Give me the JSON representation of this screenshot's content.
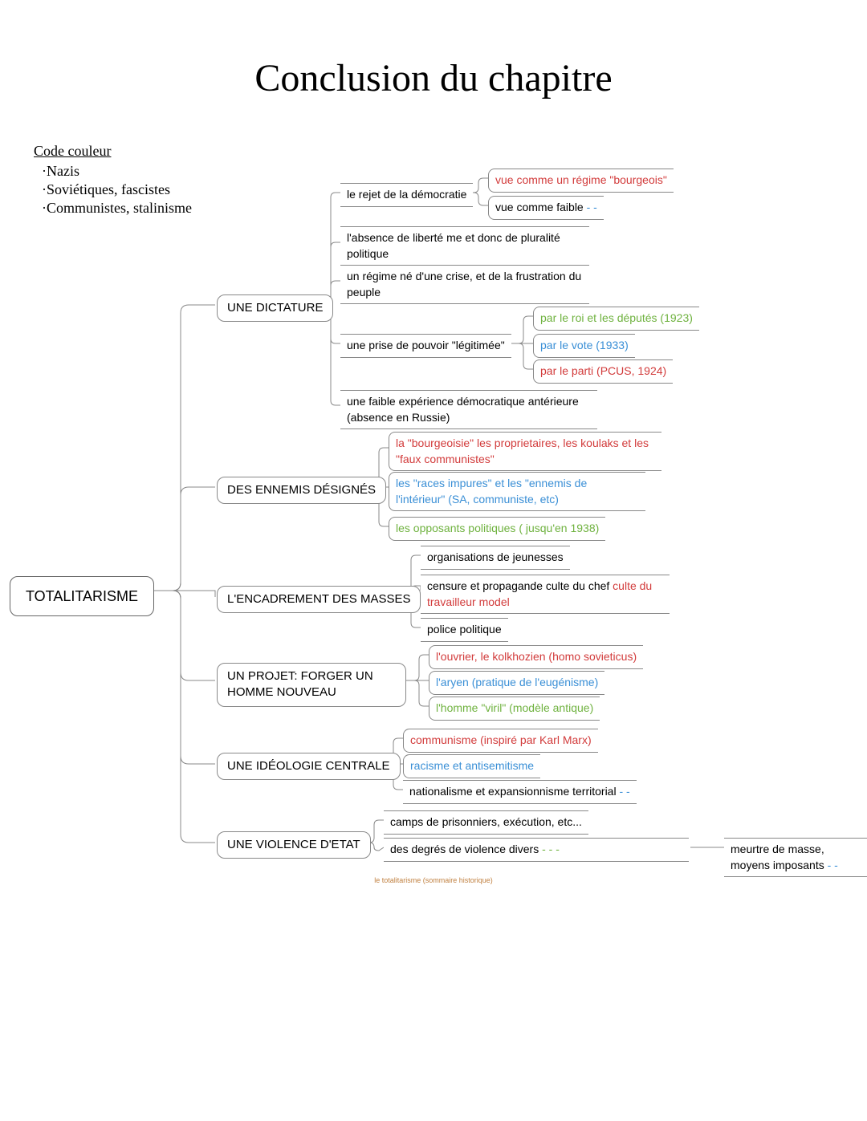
{
  "title": "Conclusion du chapitre",
  "colors": {
    "black": "#000000",
    "nazi": "#3a8fd6",
    "soviet": "#d23b3b",
    "fascist": "#6fb23f",
    "border": "#888888",
    "footer": "#c08040",
    "background": "#ffffff"
  },
  "legend": {
    "title": "Code couleur",
    "items": [
      {
        "label": "·Nazis",
        "color": "#000000"
      },
      {
        "label": "·Soviétiques, fascistes",
        "color": "#000000"
      },
      {
        "label": "·Communistes, stalinisme",
        "color": "#000000"
      }
    ]
  },
  "root": {
    "label": "TOTALITARISME"
  },
  "branches": [
    {
      "label": "UNE DICTATURE",
      "children": [
        {
          "label": "le rejet de la démocratie",
          "children": [
            {
              "spans": [
                {
                  "text": "vue comme un régime \"bourgeois\"",
                  "color": "#d23b3b"
                }
              ]
            },
            {
              "spans": [
                {
                  "text": "vue comme faible ",
                  "color": "#000000"
                },
                {
                  "text": "- -",
                  "color": "#3a8fd6"
                }
              ]
            }
          ]
        },
        {
          "spans": [
            {
              "text": "l'absence de liberté me et donc de pluralité politique",
              "color": "#000000"
            }
          ]
        },
        {
          "spans": [
            {
              "text": "un régime né d'une crise, et de la frustration du peuple",
              "color": "#000000"
            }
          ]
        },
        {
          "label": "une prise de pouvoir \"légitimée\"",
          "children": [
            {
              "spans": [
                {
                  "text": "par le roi et les députés (1923)",
                  "color": "#6fb23f"
                }
              ]
            },
            {
              "spans": [
                {
                  "text": "par le vote (1933)",
                  "color": "#3a8fd6"
                }
              ]
            },
            {
              "spans": [
                {
                  "text": "par le parti (PCUS, 1924)",
                  "color": "#d23b3b"
                }
              ]
            }
          ]
        },
        {
          "spans": [
            {
              "text": "une faible expérience démocratique antérieure (absence en Russie)",
              "color": "#000000"
            }
          ]
        }
      ]
    },
    {
      "label": "DES ENNEMIS DÉSIGNÉS",
      "children": [
        {
          "spans": [
            {
              "text": "la \"bourgeoisie\" les proprietaires, les koulaks et les \"faux communistes\"",
              "color": "#d23b3b"
            }
          ]
        },
        {
          "spans": [
            {
              "text": "les \"races impures\" et les \"ennemis de l'intérieur\" (SA, communiste, etc)",
              "color": "#3a8fd6"
            }
          ]
        },
        {
          "spans": [
            {
              "text": "les opposants politiques ( jusqu'en 1938)",
              "color": "#6fb23f"
            }
          ]
        }
      ]
    },
    {
      "label": "L'ENCADREMENT DES MASSES",
      "children": [
        {
          "spans": [
            {
              "text": "organisations de jeunesses",
              "color": "#000000"
            }
          ]
        },
        {
          "spans": [
            {
              "text": "censure et propagande culte du chef ",
              "color": "#000000"
            },
            {
              "text": "culte du travailleur model",
              "color": "#d23b3b"
            }
          ]
        },
        {
          "spans": [
            {
              "text": "police politique",
              "color": "#000000"
            }
          ]
        }
      ]
    },
    {
      "label": "UN PROJET: FORGER UN HOMME NOUVEAU",
      "children": [
        {
          "spans": [
            {
              "text": "l'ouvrier, le kolkhozien (homo sovieticus)",
              "color": "#d23b3b"
            }
          ]
        },
        {
          "spans": [
            {
              "text": "l'aryen (pratique de l'eugénisme)",
              "color": "#3a8fd6"
            }
          ]
        },
        {
          "spans": [
            {
              "text": "l'homme \"viril\" (modèle antique)",
              "color": "#6fb23f"
            }
          ]
        }
      ]
    },
    {
      "label": "UNE IDÉOLOGIE CENTRALE",
      "children": [
        {
          "spans": [
            {
              "text": "communisme (inspiré par Karl Marx)",
              "color": "#d23b3b"
            }
          ]
        },
        {
          "spans": [
            {
              "text": "racisme et antisemitisme",
              "color": "#3a8fd6"
            }
          ]
        },
        {
          "spans": [
            {
              "text": "nationalisme et expansionnisme territorial  ",
              "color": "#000000"
            },
            {
              "text": "- -",
              "color": "#3a8fd6"
            }
          ]
        }
      ]
    },
    {
      "label": "UNE VIOLENCE D'ETAT",
      "children": [
        {
          "spans": [
            {
              "text": "camps de prisonniers, exécution, etc...",
              "color": "#000000"
            }
          ]
        },
        {
          "spans": [
            {
              "text": "des degrés de violence divers ",
              "color": "#000000"
            },
            {
              "text": "- - -",
              "color": "#6fb23f"
            }
          ],
          "siblingRight": {
            "spans": [
              {
                "text": "meurtre de masse, moyens imposants ",
                "color": "#000000"
              },
              {
                "text": "- -",
                "color": "#3a8fd6"
              }
            ]
          }
        }
      ]
    }
  ],
  "footer": "le totalitarisme (sommaire historique)",
  "layout": {
    "rootX": 12,
    "rootY": 718,
    "rootW": 180,
    "branchX": 270,
    "branchYs": [
      370,
      600,
      732,
      840,
      945,
      1042
    ],
    "leafStartX": 420,
    "fontsize_branch": 15,
    "fontsize_leaf": 14
  }
}
